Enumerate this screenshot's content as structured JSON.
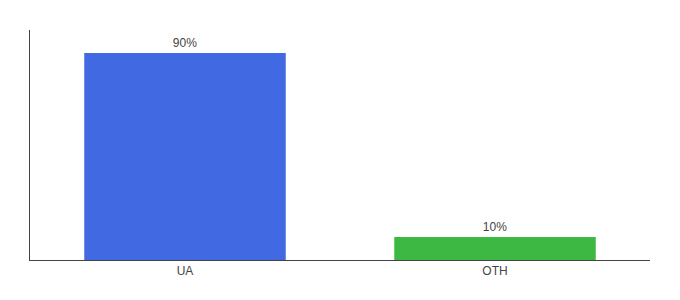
{
  "chart_data": {
    "type": "bar",
    "categories": [
      "UA",
      "OTH"
    ],
    "values": [
      90,
      10
    ],
    "value_labels": [
      "90%",
      "10%"
    ],
    "colors": [
      "#4169e1",
      "#3cb843"
    ],
    "ylim": [
      0,
      100
    ],
    "data_labels": true,
    "tick_labels": "x",
    "grid": false
  }
}
